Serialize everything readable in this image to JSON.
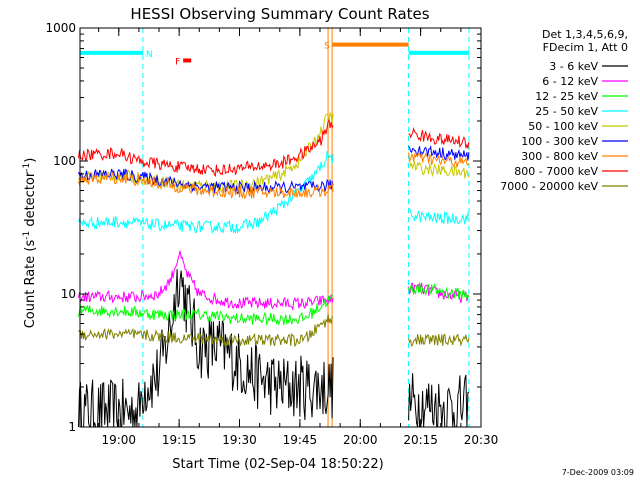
{
  "chart_data": {
    "type": "line",
    "title": "HESSI Observing Summary Count Rates",
    "xlabel": "Start Time (02-Sep-04 18:50:22)",
    "ylabel_parts": [
      "Count Rate (s",
      "-1",
      " detector",
      "-1",
      ")"
    ],
    "y_scale": "log",
    "ylim": [
      1,
      1000
    ],
    "xlim": [
      "18:50:22",
      "20:30:00"
    ],
    "x_ticks": [
      "19:00",
      "19:15",
      "19:30",
      "19:45",
      "20:00",
      "20:15",
      "20:30"
    ],
    "y_ticks": [
      "1",
      "10",
      "100",
      "1000"
    ],
    "legend_placement": "top-right outside",
    "legend_header": [
      "Det 1,3,4,5,6,9,",
      "FDecim 1, Att 0"
    ],
    "series": [
      {
        "name": "3 - 6 keV",
        "color": "#000000",
        "x": [
          "18:50",
          "19:05",
          "19:06",
          "19:10",
          "19:13",
          "19:15",
          "19:17",
          "19:20",
          "19:25",
          "19:30",
          "19:35",
          "19:40",
          "19:46",
          "19:53",
          "20:12",
          "20:15",
          "20:20",
          "20:25",
          "20:27"
        ],
        "y": [
          1.3,
          1.3,
          2.0,
          2.5,
          6,
          15,
          8,
          4,
          4,
          3,
          2.3,
          2,
          2,
          2,
          1.5,
          1.5,
          1.4,
          1.4,
          1.4
        ]
      },
      {
        "name": "6 - 12 keV",
        "color": "#ff00ff",
        "x": [
          "18:50",
          "19:00",
          "19:05",
          "19:10",
          "19:13",
          "19:15",
          "19:17",
          "19:20",
          "19:25",
          "19:30",
          "19:40",
          "19:46",
          "19:52",
          "20:12",
          "20:15",
          "20:20",
          "20:25",
          "20:27"
        ],
        "y": [
          9.5,
          9.5,
          9.5,
          10,
          13,
          20,
          14,
          10,
          9,
          8.5,
          8.5,
          8.5,
          9,
          11,
          11,
          10,
          9.5,
          9.5
        ]
      },
      {
        "name": "12 - 25 keV",
        "color": "#00ff00",
        "x": [
          "18:50",
          "19:00",
          "19:10",
          "19:20",
          "19:30",
          "19:40",
          "19:46",
          "19:52",
          "20:12",
          "20:15",
          "20:20",
          "20:25",
          "20:27"
        ],
        "y": [
          7.5,
          7.5,
          7,
          7,
          6.5,
          6.5,
          6.5,
          9,
          11,
          11,
          10.5,
          10,
          10
        ]
      },
      {
        "name": "25 - 50 keV",
        "color": "#00ffff",
        "x": [
          "18:50",
          "19:00",
          "19:10",
          "19:20",
          "19:30",
          "19:35",
          "19:40",
          "19:45",
          "19:49",
          "19:52",
          "20:12",
          "20:15",
          "20:20",
          "20:25",
          "20:27"
        ],
        "y": [
          34,
          35,
          33,
          32,
          32,
          35,
          45,
          60,
          80,
          110,
          40,
          38,
          37,
          37,
          37
        ]
      },
      {
        "name": "50 - 100 keV",
        "color": "#c8c800",
        "x": [
          "18:50",
          "19:00",
          "19:10",
          "19:15",
          "19:25",
          "19:30",
          "19:35",
          "19:40",
          "19:45",
          "19:50",
          "19:52",
          "20:12",
          "20:15",
          "20:20",
          "20:25",
          "20:27"
        ],
        "y": [
          75,
          78,
          72,
          66,
          65,
          65,
          70,
          78,
          100,
          160,
          220,
          95,
          88,
          85,
          82,
          82
        ]
      },
      {
        "name": "100 - 300 keV",
        "color": "#0000ff",
        "x": [
          "18:50",
          "19:00",
          "19:10",
          "19:20",
          "19:30",
          "19:40",
          "19:46",
          "19:52",
          "20:12",
          "20:15",
          "20:20",
          "20:25",
          "20:27"
        ],
        "y": [
          78,
          80,
          72,
          64,
          63,
          63,
          63,
          65,
          125,
          120,
          115,
          110,
          108
        ]
      },
      {
        "name": "300 - 800 keV",
        "color": "#ff8000",
        "x": [
          "18:50",
          "19:00",
          "19:10",
          "19:20",
          "19:30",
          "19:40",
          "19:46",
          "19:52",
          "20:12",
          "20:15",
          "20:20",
          "20:25",
          "20:27"
        ],
        "y": [
          73,
          75,
          68,
          60,
          58,
          58,
          58,
          60,
          110,
          105,
          100,
          98,
          97
        ]
      },
      {
        "name": "800 - 7000 keV",
        "color": "#ff0000",
        "x": [
          "18:50",
          "19:00",
          "19:05",
          "19:15",
          "19:25",
          "19:30",
          "19:40",
          "19:45",
          "19:50",
          "19:52",
          "20:12",
          "20:15",
          "20:20",
          "20:25",
          "20:27"
        ],
        "y": [
          110,
          115,
          100,
          90,
          85,
          88,
          95,
          110,
          140,
          185,
          165,
          155,
          145,
          140,
          135
        ]
      },
      {
        "name": "7000 - 20000 keV",
        "color": "#808000",
        "x": [
          "18:50",
          "19:00",
          "19:10",
          "19:20",
          "19:30",
          "19:40",
          "19:46",
          "19:52",
          "20:12",
          "20:15",
          "20:20",
          "20:25",
          "20:27"
        ],
        "y": [
          5,
          5,
          4.8,
          4.6,
          4.5,
          4.5,
          4.5,
          6.5,
          4.5,
          4.5,
          4.5,
          4.5,
          4.5
        ]
      }
    ],
    "annotations": [
      {
        "label": "N",
        "color": "#00ffff",
        "x_start": "18:50:22",
        "x_end": "19:06",
        "y": 650,
        "kind": "bar"
      },
      {
        "label": "F",
        "color": "#ff0000",
        "x_start": "19:16",
        "x_end": "19:18",
        "y": 570,
        "kind": "bar"
      },
      {
        "label": "S",
        "color": "#ff8000",
        "x_start": "19:53",
        "x_end": "20:12",
        "y": 750,
        "kind": "bar"
      },
      {
        "label": "",
        "color": "#00ffff",
        "x_start": "20:12",
        "x_end": "20:27",
        "y": 650,
        "kind": "bar"
      }
    ],
    "vertical_lines": [
      {
        "x": "19:06",
        "color": "#00ffff",
        "dashed": true
      },
      {
        "x": "20:12",
        "color": "#00ffff",
        "dashed": true
      },
      {
        "x": "20:27",
        "color": "#00ffff",
        "dashed": true
      },
      {
        "x": "19:52",
        "color": "#ff8000",
        "dashed": false
      },
      {
        "x": "19:53",
        "color": "#ff8000",
        "dashed": false
      }
    ],
    "data_gap": [
      "19:53",
      "20:12"
    ],
    "footer": "7-Dec-2009 03:09"
  }
}
